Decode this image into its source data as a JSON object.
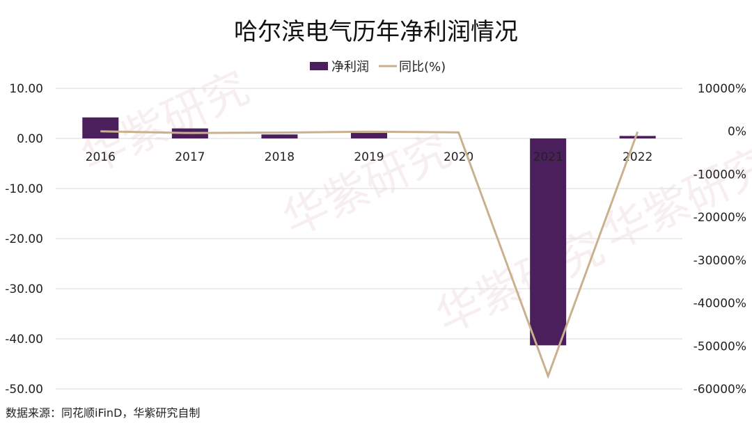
{
  "chart_data": {
    "type": "bar+line",
    "title": "哈尔滨电气历年净利润情况",
    "categories": [
      "2016",
      "2017",
      "2018",
      "2019",
      "2020",
      "2021",
      "2022"
    ],
    "series": [
      {
        "name": "净利润",
        "type": "bar",
        "axis": "left",
        "color": "#4a1f5c",
        "values": [
          4.2,
          2.0,
          0.8,
          1.1,
          0.0,
          -41.3,
          0.5
        ]
      },
      {
        "name": "同比(%)",
        "type": "line",
        "axis": "right",
        "color": "#c9b08e",
        "values": [
          0,
          -400,
          -300,
          -80,
          -260,
          -57000,
          -100
        ]
      }
    ],
    "left_axis": {
      "ylim": [
        -50,
        10
      ],
      "ticks": [
        "10.00",
        "0.00",
        "-10.00",
        "-20.00",
        "-30.00",
        "-40.00",
        "-50.00"
      ]
    },
    "right_axis": {
      "ylim": [
        -60000,
        10000
      ],
      "ticks": [
        "10000%",
        "0%",
        "-10000%",
        "-20000%",
        "-30000%",
        "-40000%",
        "-50000%",
        "-60000%"
      ]
    },
    "legend_position": "top-center",
    "grid": true
  },
  "source": "数据来源：同花顺iFinD，华紫研究自制",
  "watermark": "华紫研究"
}
